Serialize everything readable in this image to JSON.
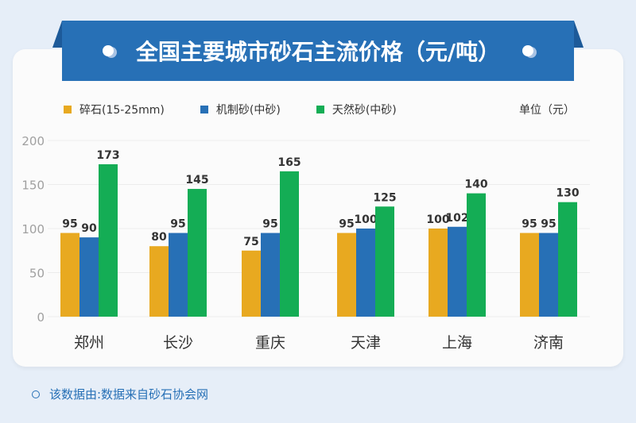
{
  "title": "全国主要城市砂石主流价格（元/吨）",
  "unit_label": "单位（元）",
  "footer": "该数据由:数据来自砂石协会网",
  "colors": {
    "banner": "#2770b6",
    "background": "#e6eef8"
  },
  "chart_data": {
    "type": "bar",
    "title": "全国主要城市砂石主流价格（元/吨）",
    "categories": [
      "郑州",
      "长沙",
      "重庆",
      "天津",
      "上海",
      "济南"
    ],
    "series": [
      {
        "name": "碎石(15-25mm)",
        "color": "#e8a920",
        "values": [
          95,
          80,
          75,
          95,
          100,
          95
        ]
      },
      {
        "name": "机制砂(中砂)",
        "color": "#2770b6",
        "values": [
          90,
          95,
          95,
          100,
          102,
          95
        ]
      },
      {
        "name": "天然砂(中砂)",
        "color": "#14ad55",
        "values": [
          173,
          145,
          165,
          125,
          140,
          130
        ]
      }
    ],
    "ylim": [
      0,
      200
    ],
    "yticks": [
      0,
      50,
      100,
      150,
      200
    ],
    "grid": true,
    "legend": "top-left"
  }
}
